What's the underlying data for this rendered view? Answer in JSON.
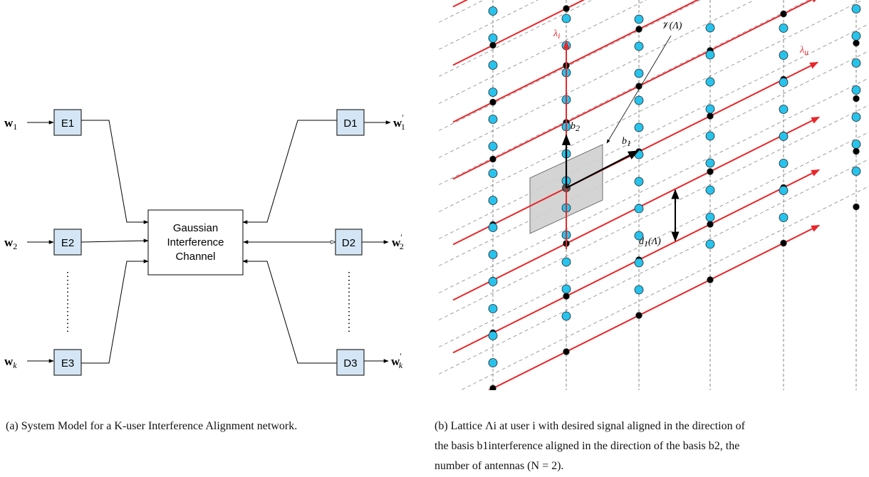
{
  "left": {
    "encoders": [
      {
        "input": "w",
        "input_sub": "1",
        "label": "E1"
      },
      {
        "input": "w",
        "input_sub": "2",
        "label": "E2"
      },
      {
        "input": "w",
        "input_sub": "k",
        "label": "E3"
      }
    ],
    "decoders": [
      {
        "label": "D1",
        "output": "w",
        "output_sub": "1",
        "output_sup": "′"
      },
      {
        "label": "D2",
        "output": "w",
        "output_sub": "2",
        "output_sup": "′"
      },
      {
        "label": "D3",
        "output": "w",
        "output_sub": "k",
        "output_sup": "′"
      }
    ],
    "channel": {
      "line1": "Gaussian",
      "line2": "Interference",
      "line3": "Channel"
    }
  },
  "right": {
    "labels": {
      "lambda_i": "λ",
      "lambda_i_sub": "i",
      "lambda_u": "λ",
      "lambda_u_sub": "u",
      "voronoi": "𝒱(Λ)",
      "b1": "b",
      "b1_sub": "1",
      "b2": "b",
      "b2_sub": "2",
      "d1": "d",
      "d1_sub": "1",
      "d1_tail": "(Λ)"
    },
    "colors": {
      "red": "#e8262a",
      "cyan": "#27c3ec",
      "black": "#000000",
      "cell": "#cfcfcf"
    }
  },
  "captions": {
    "a": "(a) System Model for a K-user Interference Alignment network.",
    "b_line1": "(b) Lattice Λi at user i with desired signal aligned in the direction of",
    "b_line2": "the basis b1interference aligned in the direction of the basis b2, the",
    "b_line3": "number of antennas (N = 2)."
  }
}
